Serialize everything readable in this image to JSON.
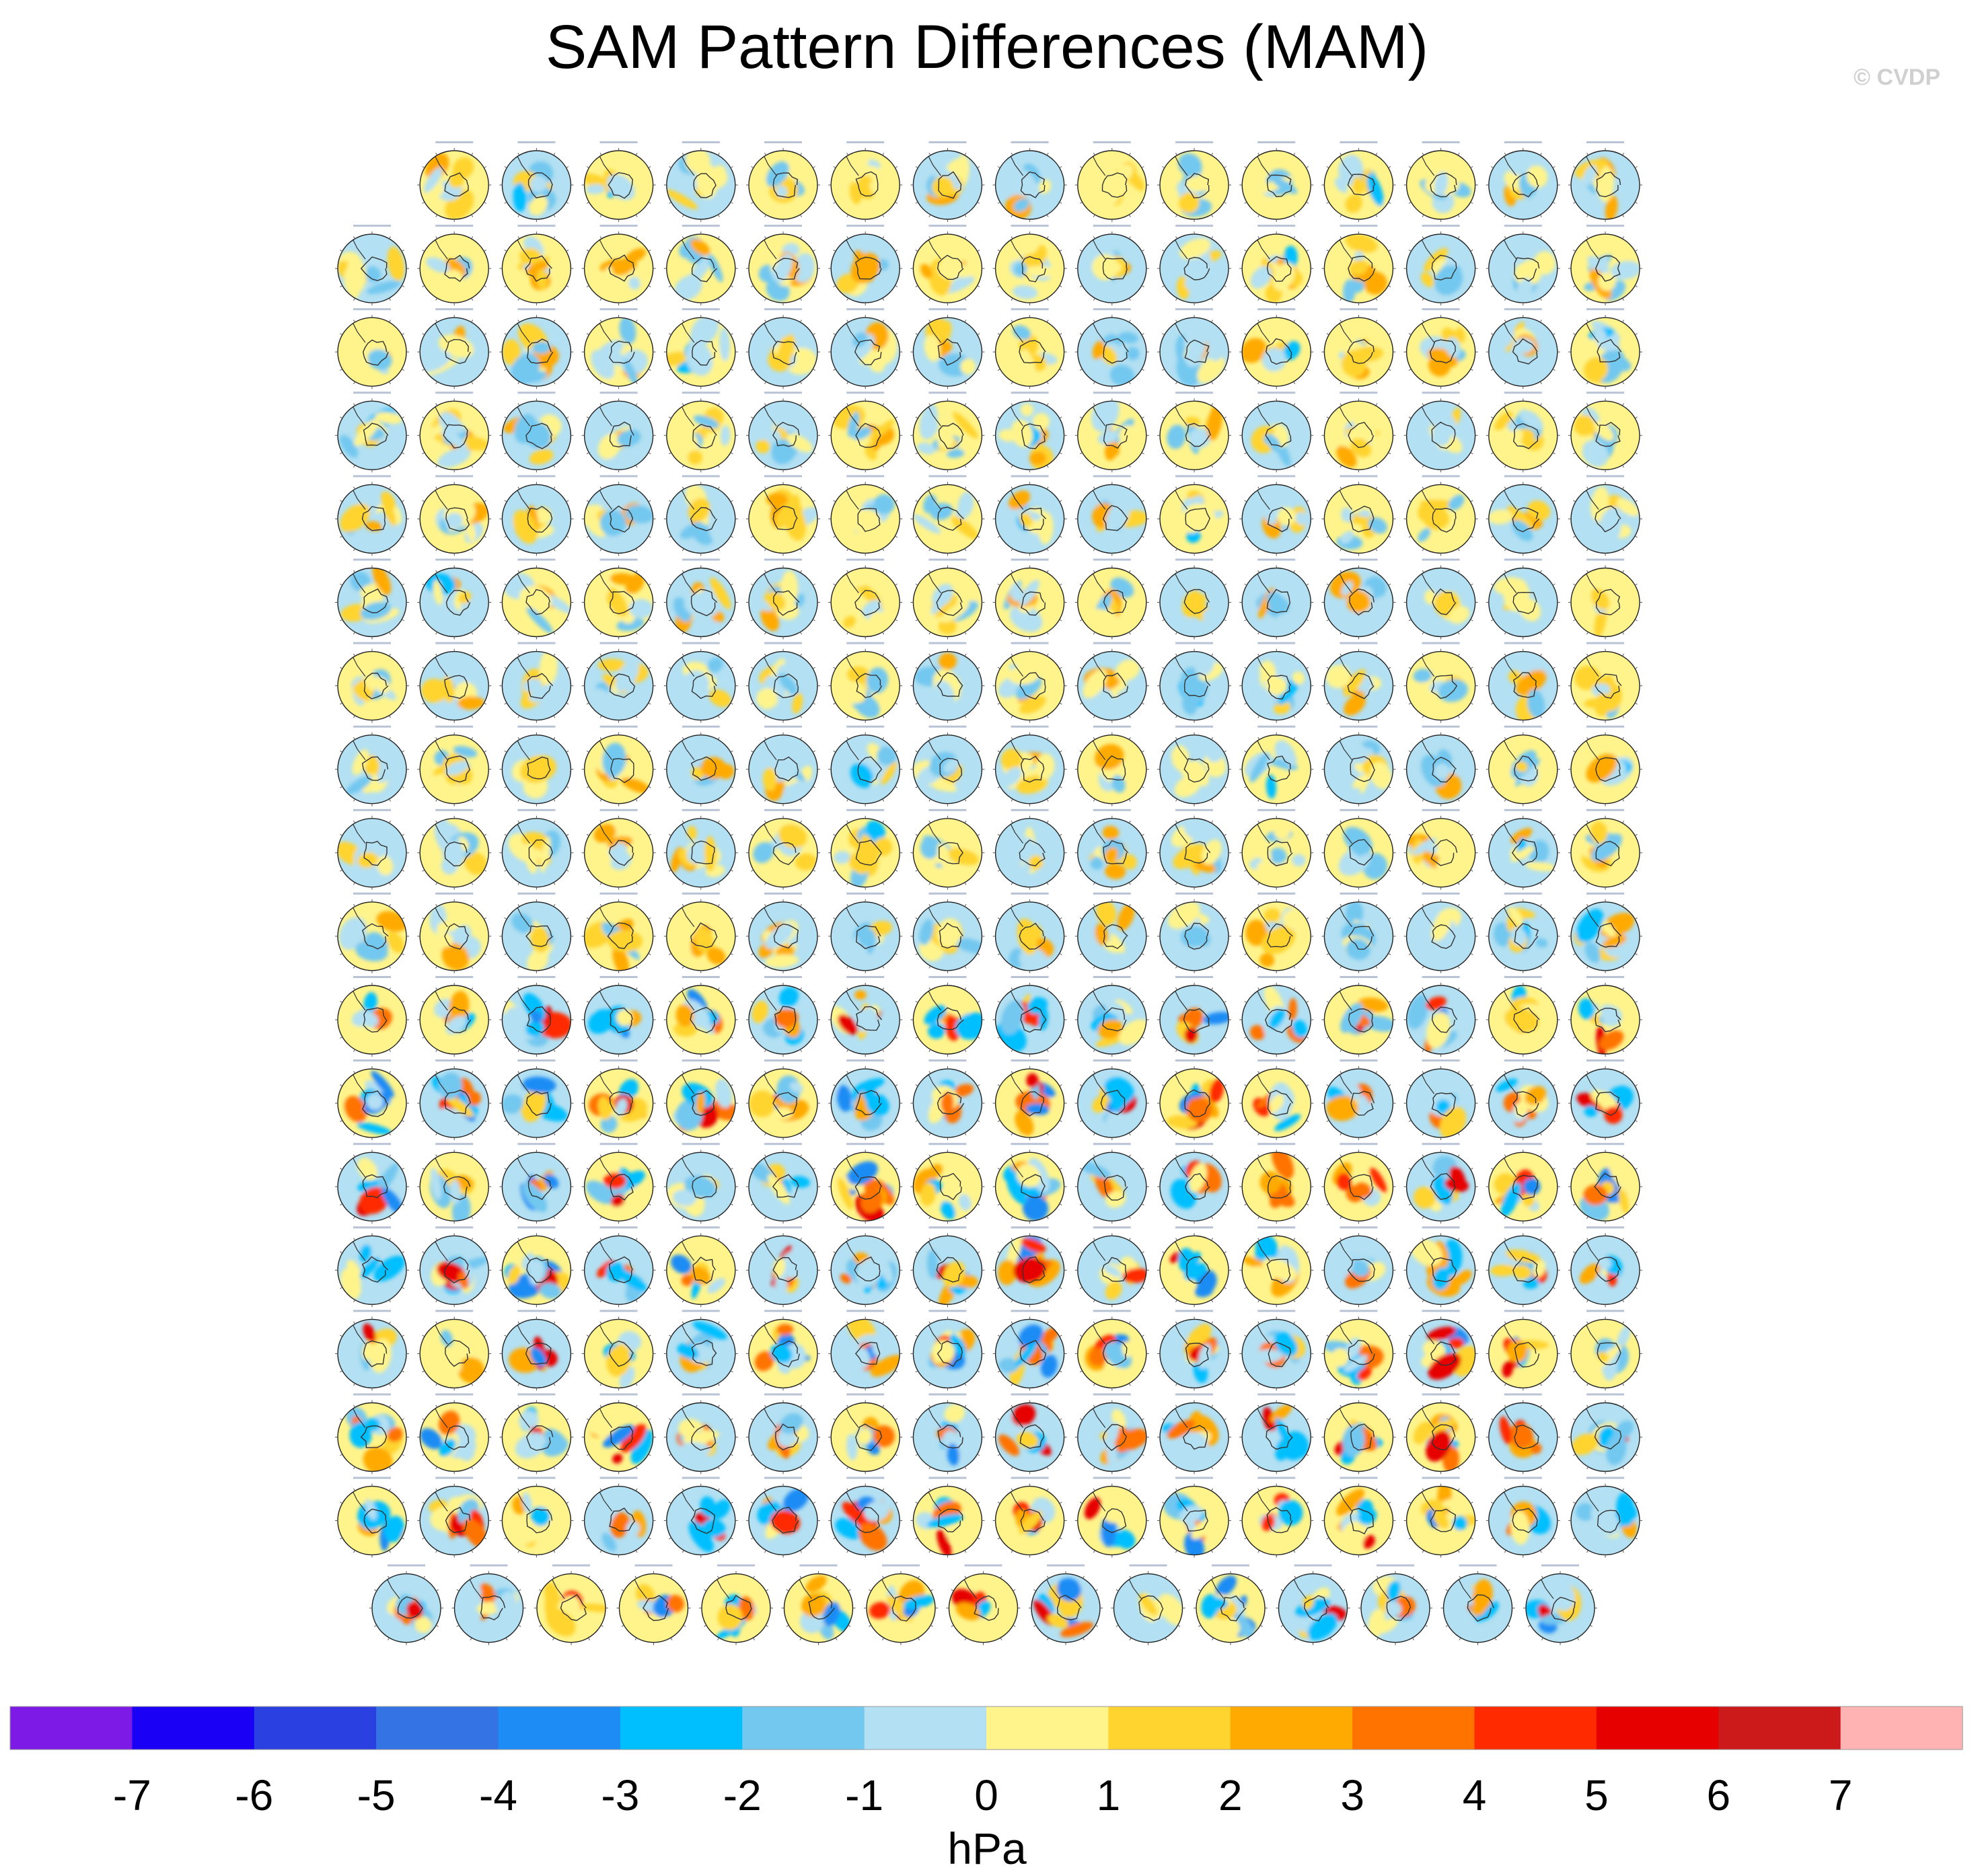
{
  "title": "SAM Pattern Differences (MAM)",
  "watermark": "© CVDP",
  "chart_data": {
    "type": "heatmap",
    "title": "SAM Pattern Differences (MAM)",
    "description_kind": "grid of south-polar stereographic sea-level-pressure difference maps",
    "panel_rows": [
      15,
      16,
      16,
      16,
      16,
      16,
      16,
      16,
      16,
      16,
      16,
      16,
      16,
      16,
      16,
      16,
      16,
      15
    ],
    "total_panels": 286,
    "colorbar": {
      "unit": "hPa",
      "tick_labels": [
        "-7",
        "-6",
        "-5",
        "-4",
        "-3",
        "-2",
        "-1",
        "0",
        "1",
        "2",
        "3",
        "4",
        "5",
        "6",
        "7"
      ],
      "levels": [
        -7,
        -6,
        -5,
        -4,
        -3,
        -2,
        -1,
        0,
        1,
        2,
        3,
        4,
        5,
        6,
        7
      ],
      "colors": [
        "#7e1ae6",
        "#1a00f5",
        "#2b40e0",
        "#3373e3",
        "#1e8cf5",
        "#00bfff",
        "#73c8f0",
        "#b3e0f2",
        "#fff48c",
        "#ffd42e",
        "#ffaa00",
        "#ff7300",
        "#ff2a00",
        "#e60000",
        "#cc1a1a",
        "#ffb3b3"
      ]
    }
  }
}
